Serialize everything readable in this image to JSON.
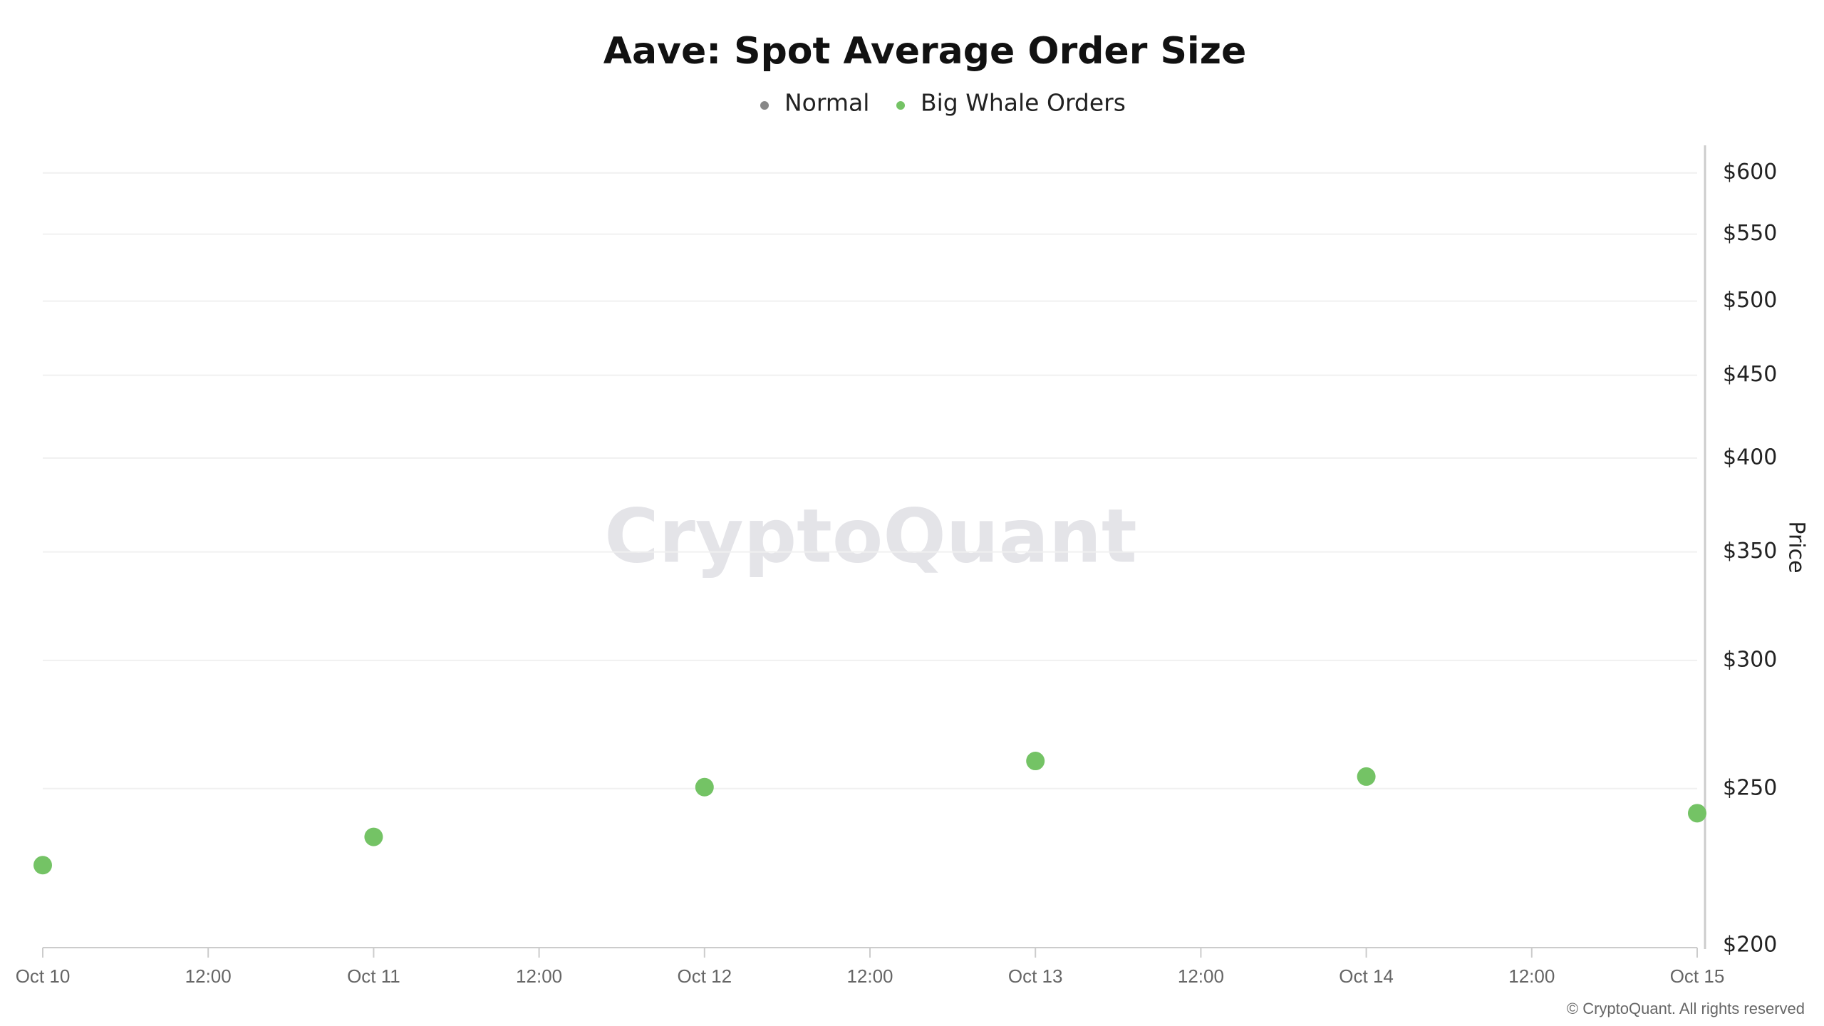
{
  "chart_data": {
    "type": "scatter",
    "title": "Aave: Spot Average Order Size",
    "categories": [
      "Oct 10",
      "12:00",
      "Oct 11",
      "12:00",
      "Oct 12",
      "12:00",
      "Oct 13",
      "12:00",
      "Oct 14",
      "12:00",
      "Oct 15"
    ],
    "series": [
      {
        "name": "Normal",
        "color": "#888888",
        "values": [
          null,
          null,
          null,
          null,
          null,
          null,
          null,
          null,
          null,
          null,
          null
        ]
      },
      {
        "name": "Big Whale Orders",
        "color": "#74c365",
        "values": [
          224.2,
          null,
          233.4,
          null,
          250.5,
          null,
          260,
          null,
          254.3,
          null,
          241.4
        ]
      }
    ],
    "y_label": "Price",
    "log_scale": true,
    "grid": true,
    "ylim": [
      200,
      624
    ],
    "yticks": [
      {
        "value": 200,
        "label": "$200"
      },
      {
        "value": 250,
        "label": "$250"
      },
      {
        "value": 300,
        "label": "$300"
      },
      {
        "value": 350,
        "label": "$350"
      },
      {
        "value": 400,
        "label": "$400"
      },
      {
        "value": 450,
        "label": "$450"
      },
      {
        "value": 500,
        "label": "$500"
      },
      {
        "value": 550,
        "label": "$550"
      },
      {
        "value": 600,
        "label": "$600"
      }
    ],
    "watermark": "CryptoQuant",
    "copyright": "© CryptoQuant. All rights reserved"
  }
}
